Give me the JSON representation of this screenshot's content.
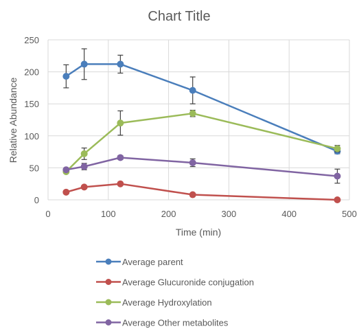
{
  "chart_data": {
    "type": "scatter",
    "title": "Chart Title",
    "xlabel": "Time (min)",
    "ylabel": "Relative Abundance",
    "xlim": [
      0,
      500
    ],
    "ylim": [
      0,
      250
    ],
    "xticks": [
      0,
      100,
      200,
      300,
      400,
      500
    ],
    "yticks": [
      0,
      50,
      100,
      150,
      200,
      250
    ],
    "grid": true,
    "legend_position": "bottom",
    "x": [
      30,
      60,
      120,
      240,
      480
    ],
    "series": [
      {
        "name": "Average parent",
        "color": "#4a7ebb",
        "values": [
          193,
          212,
          212,
          171,
          76
        ],
        "errors": [
          18,
          24,
          14,
          21,
          4
        ]
      },
      {
        "name": "Average Glucuronide conjugation",
        "color": "#c0504d",
        "values": [
          12,
          20,
          25,
          8,
          0
        ],
        "errors": [
          0,
          0,
          0,
          0,
          0
        ]
      },
      {
        "name": "Average Hydroxylation",
        "color": "#9bbb59",
        "values": [
          44,
          72,
          120,
          135,
          80
        ],
        "errors": [
          0,
          9,
          19,
          5,
          5
        ]
      },
      {
        "name": "Average Other metabolites",
        "color": "#8064a2",
        "values": [
          47,
          52,
          66,
          58,
          37
        ],
        "errors": [
          0,
          5,
          3,
          6,
          11
        ]
      }
    ]
  }
}
